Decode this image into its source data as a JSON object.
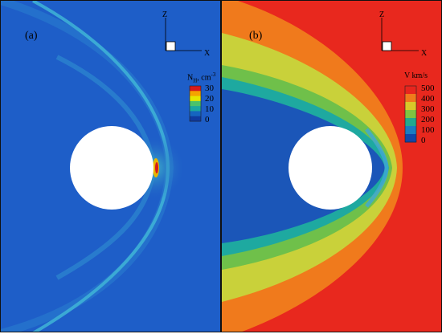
{
  "panel_a": {
    "tag": "(a)",
    "axis_z": "Z",
    "axis_x": "X",
    "colorbar": {
      "title": "N",
      "title_sub": "H",
      "title_unit": ", cm",
      "title_sup": "-3",
      "ticks": [
        "30",
        "20",
        "10",
        "0"
      ],
      "colors": [
        "#d7191c",
        "#f5a300",
        "#e6e600",
        "#4ac26b",
        "#1aa7a0",
        "#1565c0",
        "#0f3aa0"
      ]
    },
    "background_color": "#1e5ec8"
  },
  "panel_b": {
    "tag": "(b)",
    "axis_z": "Z",
    "axis_x": "X",
    "colorbar": {
      "title": "V km/s",
      "ticks": [
        "500",
        "400",
        "300",
        "200",
        "100",
        "0"
      ],
      "colors": [
        "#e8251e",
        "#f07a1c",
        "#d9c829",
        "#7fc441",
        "#22a98f",
        "#1b7cc1",
        "#1246a8"
      ]
    },
    "background_color": "#e8281e"
  }
}
